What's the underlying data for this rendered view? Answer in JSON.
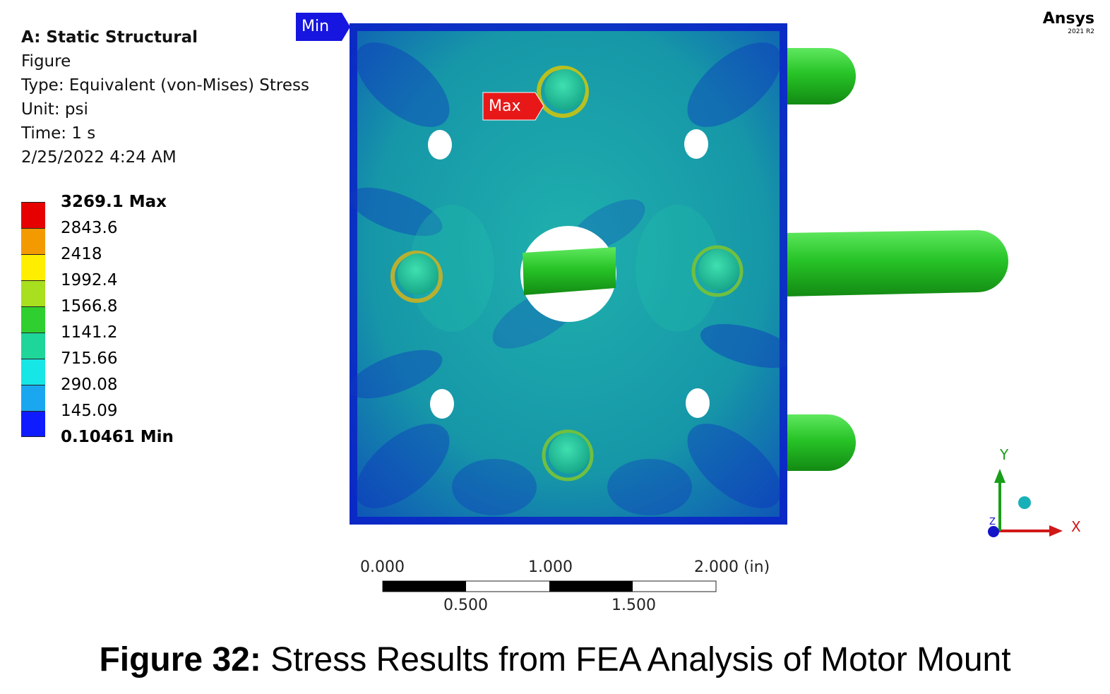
{
  "header": {
    "analysis": "A: Static Structural",
    "figure": "Figure",
    "type": "Type: Equivalent (von-Mises) Stress",
    "unit": "Unit: psi",
    "time": "Time: 1 s",
    "timestamp": "2/25/2022 4:24 AM"
  },
  "legend": {
    "entries": [
      {
        "label": "3269.1 Max",
        "color": "#e60000",
        "bold": true
      },
      {
        "label": "2843.6",
        "color": "#f29a00"
      },
      {
        "label": "2418",
        "color": "#ffee00"
      },
      {
        "label": "1992.4",
        "color": "#a8df1e"
      },
      {
        "label": "1566.8",
        "color": "#2fcf2f"
      },
      {
        "label": "1141.2",
        "color": "#1fd69a"
      },
      {
        "label": "715.66",
        "color": "#17e6e6"
      },
      {
        "label": "290.08",
        "color": "#1aa7f0"
      },
      {
        "label": "145.09",
        "color": "#0f1cff"
      },
      {
        "label": "0.10461 Min",
        "color": "",
        "bold": true
      }
    ]
  },
  "brand": {
    "name": "Ansys",
    "version": "2021 R2"
  },
  "markers": {
    "min": "Min",
    "max": "Max"
  },
  "scale": {
    "top": [
      "0.000",
      "1.000",
      "2.000 (in)"
    ],
    "bottom": [
      "0.500",
      "1.500"
    ]
  },
  "triad": {
    "y": "Y",
    "x": "X",
    "z": "Z"
  },
  "caption": {
    "label": "Figure 32:",
    "text": " Stress Results from FEA Analysis of Motor Mount"
  },
  "colors": {
    "plate_base": "#1aa3a8",
    "plate_low": "#0f2fb8",
    "shaft_green": "#27c427",
    "max_marker": "#e81818",
    "min_marker": "#1616e0"
  }
}
